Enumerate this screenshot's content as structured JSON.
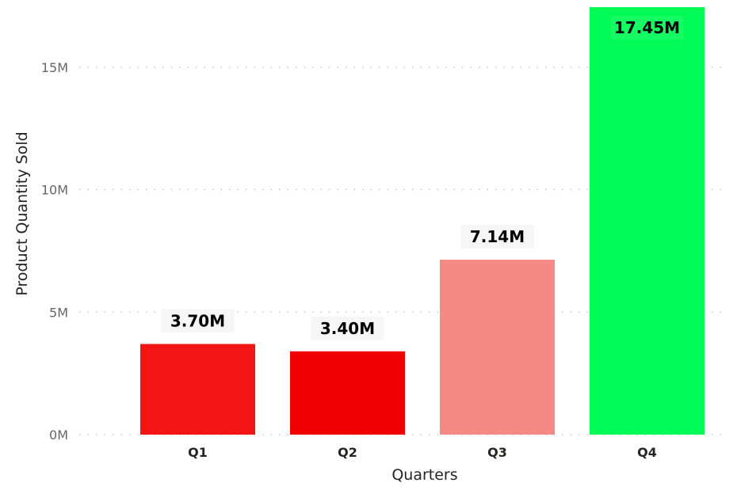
{
  "chart_data": {
    "type": "bar",
    "title": "",
    "xlabel": "Quarters",
    "ylabel": "Product Quantity Sold",
    "categories": [
      "Q1",
      "Q2",
      "Q3",
      "Q4"
    ],
    "values": [
      3.7,
      3.4,
      7.14,
      17.45
    ],
    "value_unit": "millions",
    "data_labels": [
      "3.70M",
      "3.40M",
      "7.14M",
      "17.45M"
    ],
    "bar_colors": [
      "#f31515",
      "#f00000",
      "#f68986",
      "#00fb57"
    ],
    "ylim": [
      0,
      17.45
    ],
    "yticks": [
      {
        "value": 0,
        "label": "0M"
      },
      {
        "value": 5,
        "label": "5M"
      },
      {
        "value": 10,
        "label": "10M"
      },
      {
        "value": 15,
        "label": "15M"
      }
    ],
    "grid": true,
    "legend": "none"
  }
}
